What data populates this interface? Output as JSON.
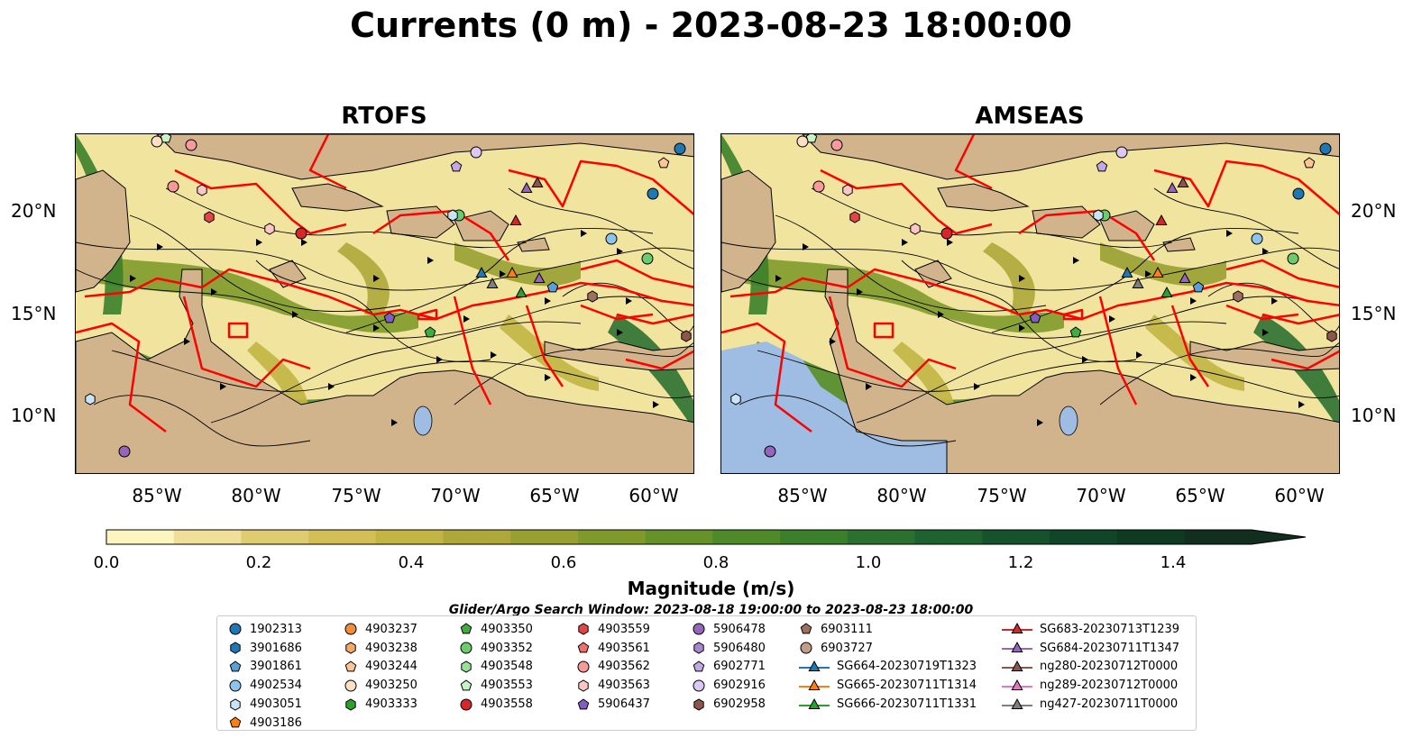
{
  "title": "Currents (0 m) - 2023-08-23 18:00:00",
  "panels": [
    {
      "title": "RTOFS"
    },
    {
      "title": "AMSEAS"
    }
  ],
  "lat_labels": [
    "20°N",
    "15°N",
    "10°N"
  ],
  "lon_labels": [
    "85°W",
    "80°W",
    "75°W",
    "70°W",
    "65°W",
    "60°W"
  ],
  "colorbar": {
    "label": "Magnitude (m/s)",
    "ticks": [
      "0.0",
      "0.2",
      "0.4",
      "0.6",
      "0.8",
      "1.0",
      "1.2",
      "1.4"
    ],
    "range": [
      0.0,
      1.5
    ],
    "extend": "max",
    "colors": [
      "#fcf5c0",
      "#efdf98",
      "#e0cc70",
      "#d3bf56",
      "#c2b544",
      "#aea73a",
      "#98a032",
      "#7f9a2a",
      "#66922a",
      "#4f8a2a",
      "#3b7f2a",
      "#2c7030",
      "#1e6230",
      "#16532c",
      "#114527",
      "#0f3a22",
      "#122e1e"
    ]
  },
  "legend": {
    "title": "Glider/Argo Search Window: 2023-08-18 19:00:00 to 2023-08-23 18:00:00",
    "columns": [
      [
        {
          "label": "1902313",
          "marker": "circle",
          "color": "#1f77b4"
        },
        {
          "label": "3901686",
          "marker": "hexagon",
          "color": "#1f77b4"
        },
        {
          "label": "3901861",
          "marker": "pentagon",
          "color": "#5aa0d6"
        },
        {
          "label": "4902534",
          "marker": "circle",
          "color": "#8ec3ec"
        },
        {
          "label": "4903051",
          "marker": "hexagon",
          "color": "#c9e3f7"
        },
        {
          "label": "4903186",
          "marker": "pentagon",
          "color": "#ff7f0e"
        }
      ],
      [
        {
          "label": "4903237",
          "marker": "circle",
          "color": "#f08c3a"
        },
        {
          "label": "4903238",
          "marker": "hexagon",
          "color": "#f7a868"
        },
        {
          "label": "4903244",
          "marker": "pentagon",
          "color": "#fbc596"
        },
        {
          "label": "4903250",
          "marker": "circle",
          "color": "#fde0c4"
        },
        {
          "label": "4903333",
          "marker": "hexagon",
          "color": "#2ca02c"
        }
      ],
      [
        {
          "label": "4903350",
          "marker": "pentagon",
          "color": "#3fae3f"
        },
        {
          "label": "4903352",
          "marker": "circle",
          "color": "#6ccc6c"
        },
        {
          "label": "4903548",
          "marker": "hexagon",
          "color": "#98e098"
        },
        {
          "label": "4903553",
          "marker": "pentagon",
          "color": "#c9f2c9"
        },
        {
          "label": "4903558",
          "marker": "circle",
          "color": "#d62728"
        }
      ],
      [
        {
          "label": "4903559",
          "marker": "hexagon",
          "color": "#e04646"
        },
        {
          "label": "4903561",
          "marker": "pentagon",
          "color": "#f07070"
        },
        {
          "label": "4903562",
          "marker": "circle",
          "color": "#f79a9a"
        },
        {
          "label": "4903563",
          "marker": "hexagon",
          "color": "#fcc6c6"
        },
        {
          "label": "5906437",
          "marker": "pentagon",
          "color": "#7f5fbf"
        }
      ],
      [
        {
          "label": "5906478",
          "marker": "circle",
          "color": "#9467bd"
        },
        {
          "label": "5906480",
          "marker": "hexagon",
          "color": "#a987d0"
        },
        {
          "label": "6902771",
          "marker": "pentagon",
          "color": "#c4a8e4"
        },
        {
          "label": "6902916",
          "marker": "circle",
          "color": "#dcc8f2"
        },
        {
          "label": "6902958",
          "marker": "hexagon",
          "color": "#8c564b"
        }
      ],
      [
        {
          "label": "6903111",
          "marker": "pentagon",
          "color": "#a0705f"
        },
        {
          "label": "6903727",
          "marker": "circle",
          "color": "#c49c8c"
        },
        {
          "label": "SG664-20230719T1323",
          "marker": "triangle",
          "color": "#1f77b4"
        },
        {
          "label": "SG665-20230711T1314",
          "marker": "triangle",
          "color": "#ff7f0e"
        },
        {
          "label": "SG666-20230711T1331",
          "marker": "triangle",
          "color": "#2ca02c"
        }
      ],
      [
        {
          "label": "SG683-20230713T1239",
          "marker": "triangle",
          "color": "#d62728"
        },
        {
          "label": "SG684-20230711T1347",
          "marker": "triangle",
          "color": "#9467bd"
        },
        {
          "label": "ng280-20230712T0000",
          "marker": "triangle",
          "color": "#8c564b"
        },
        {
          "label": "ng289-20230712T0000",
          "marker": "triangle",
          "color": "#e377c2"
        },
        {
          "label": "ng427-20230711T0000",
          "marker": "triangle",
          "color": "#7f7f7f"
        }
      ]
    ]
  },
  "land_color": "#d2b48c",
  "boundary_color": "#ff0000",
  "ocean_nodata_color": "#9fbde2"
}
